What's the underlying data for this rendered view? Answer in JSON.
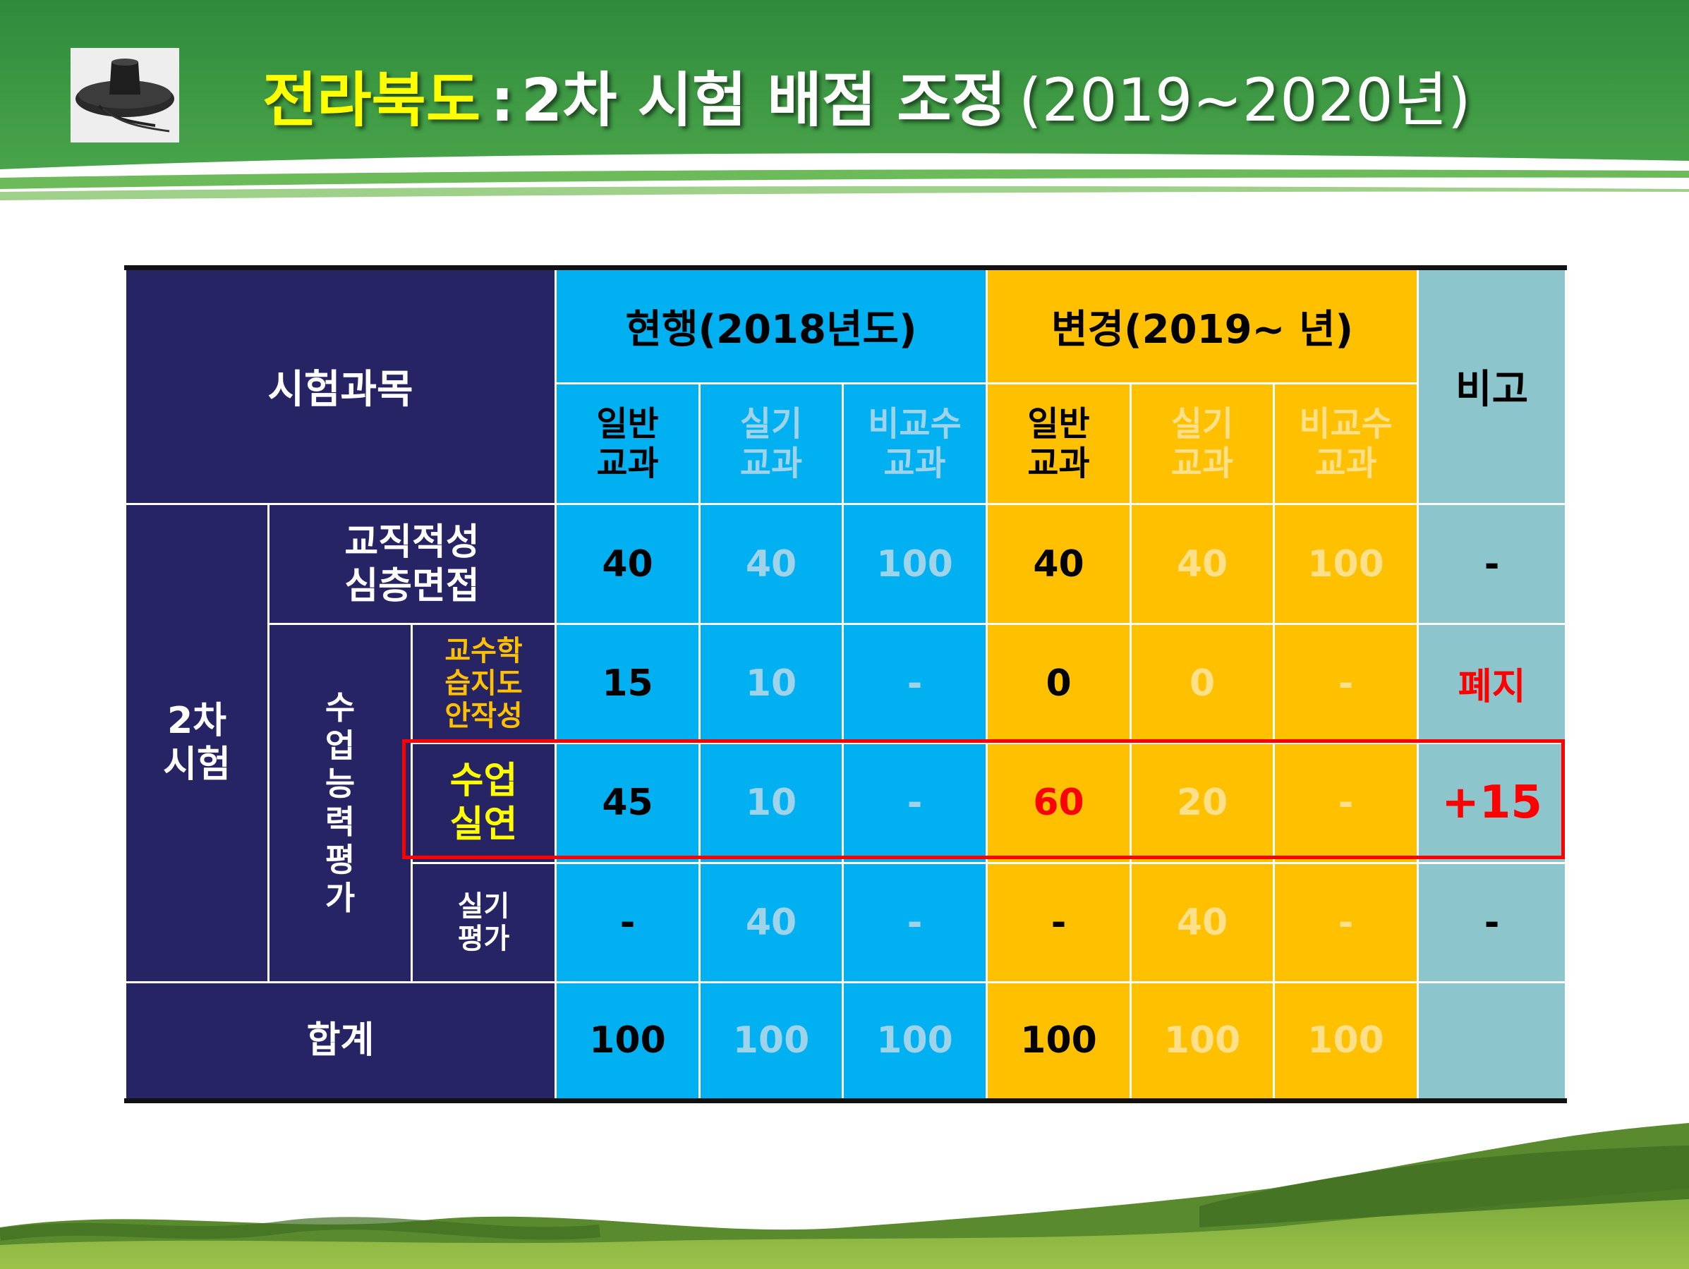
{
  "title": {
    "highlight": "전라북도",
    "separator": ":",
    "main": "2차 시험 배점 조정",
    "years": "(2019~2020년)"
  },
  "table": {
    "subject_header": "시험과목",
    "current_header": "현행(2018년도)",
    "changed_header": "변경(2019~ 년)",
    "remark_header": "비고",
    "sub_headers": {
      "general": [
        "일반",
        "교과"
      ],
      "practical": [
        "실기",
        "교과"
      ],
      "non_teaching": [
        "비교수",
        "교과"
      ]
    },
    "stage_label": [
      "2차",
      "시험"
    ],
    "teaching_ability_label": [
      "수",
      "업",
      "능",
      "력",
      "평",
      "가"
    ],
    "total_label": "합계",
    "rows": [
      {
        "label": [
          "교직적성",
          "심층면접"
        ],
        "current": [
          "40",
          "40",
          "100"
        ],
        "changed": [
          "40",
          "40",
          "100"
        ],
        "remark": "-"
      },
      {
        "label": [
          "교수학",
          "습지도",
          "안작성"
        ],
        "current": [
          "15",
          "10",
          "-"
        ],
        "changed": [
          "0",
          "0",
          "-"
        ],
        "remark": "폐지"
      },
      {
        "label": [
          "수업",
          "실연"
        ],
        "current": [
          "45",
          "10",
          "-"
        ],
        "changed": [
          "60",
          "20",
          "-"
        ],
        "remark": "+15"
      },
      {
        "label": [
          "실기",
          "평가"
        ],
        "current": [
          "-",
          "40",
          "-"
        ],
        "changed": [
          "-",
          "40",
          "-"
        ],
        "remark": "-"
      }
    ],
    "total": {
      "current": [
        "100",
        "100",
        "100"
      ],
      "changed": [
        "100",
        "100",
        "100"
      ],
      "remark": ""
    }
  },
  "colors": {
    "header_green": "#3f9a44",
    "navy": "#262465",
    "current_blue": "#00b0f0",
    "changed_yellow": "#ffc000",
    "remark_teal": "#8cc6cc",
    "highlight_red": "#ff0000"
  },
  "icons": {
    "hat": "gat-hat-image",
    "grass": "grass-strip-image"
  }
}
